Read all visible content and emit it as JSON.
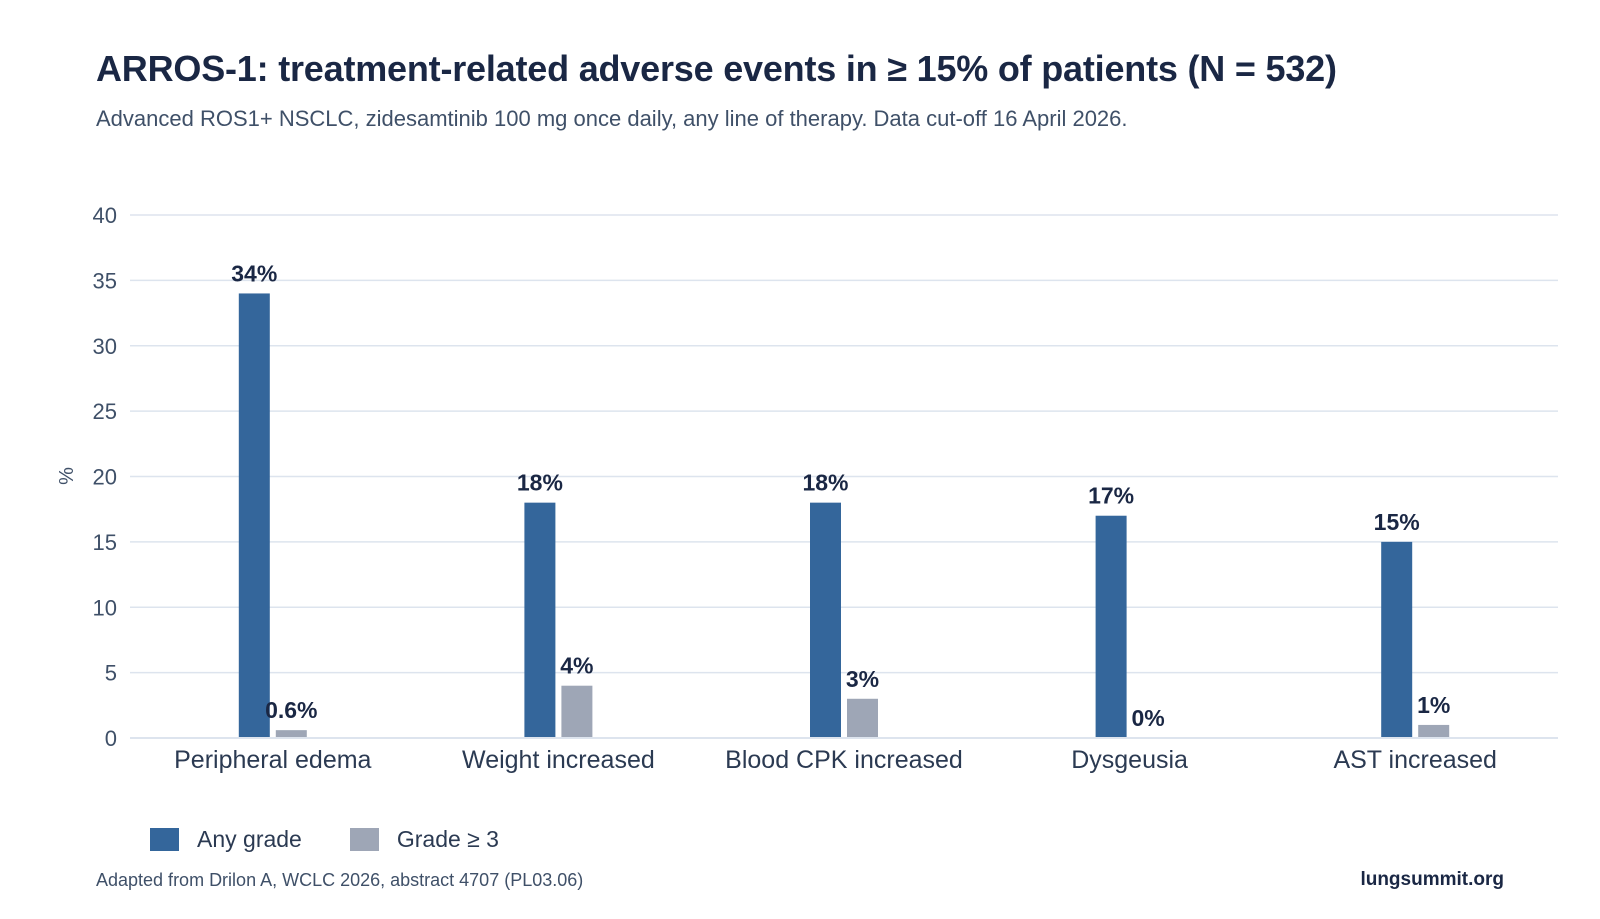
{
  "title": "ARROS-1: treatment-related adverse events in ≥ 15% of patients (N = 532)",
  "subtitle": "Advanced ROS1+ NSCLC, zidesamtinib 100 mg once daily, any line of therapy. Data cut-off 16 April 2026.",
  "source": "Adapted from Drilon A, WCLC 2026, abstract 4707 (PL03.06)",
  "brand": "lungsummit.org",
  "colors": {
    "any_grade": "#34669b",
    "grade3": "#9ea6b6",
    "grid": "#dde4ee",
    "label": "#1a2744",
    "axis_text": "#3f5068"
  },
  "chart_data": {
    "type": "bar",
    "categories": [
      "Peripheral edema",
      "Weight increased",
      "Blood CPK increased",
      "Dysgeusia",
      "AST increased"
    ],
    "series": [
      {
        "name": "Any grade",
        "values": [
          34,
          18,
          18,
          17,
          15
        ],
        "labels": [
          "34%",
          "18%",
          "18%",
          "17%",
          "15%"
        ]
      },
      {
        "name": "Grade ≥ 3",
        "values": [
          0.6,
          4,
          3,
          0,
          1
        ],
        "labels": [
          "0.6%",
          "4%",
          "3%",
          "0%",
          "1%"
        ]
      }
    ],
    "ylabel": "%",
    "xlabel": "",
    "ylim": [
      0,
      40
    ],
    "yticks": [
      0,
      5,
      10,
      15,
      20,
      25,
      30,
      35,
      40
    ],
    "grid": true,
    "legend": "bottom-left"
  }
}
